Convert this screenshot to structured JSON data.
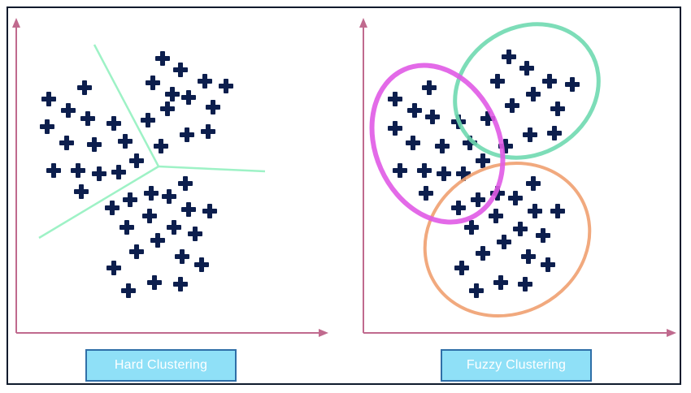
{
  "captions": {
    "hard": "Hard Clustering",
    "fuzzy": "Fuzzy Clustering"
  },
  "colors": {
    "axis": "#c06a8e",
    "marker": "#0c1e4d",
    "boundary": "#9ef2c6",
    "cluster_magenta": "#e05ae6",
    "cluster_green": "#6fd9b0",
    "cluster_orange": "#f0a070",
    "caption_fill": "#8fe0f7",
    "caption_border": "#2f6fa8"
  },
  "icons": [
    "plus-marker-icon",
    "arrow-right-icon",
    "arrow-up-icon"
  ]
}
